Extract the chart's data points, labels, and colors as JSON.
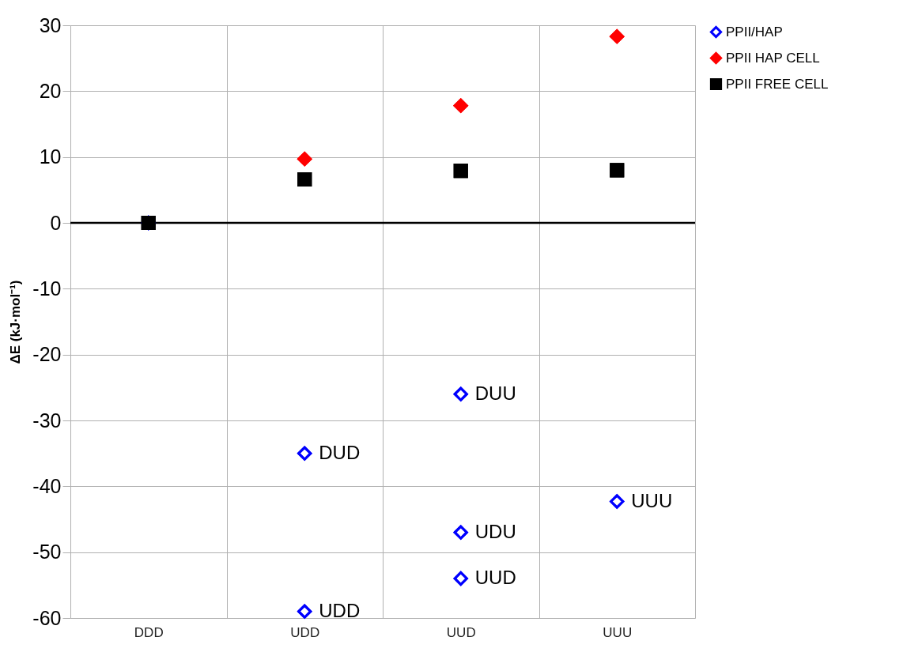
{
  "chart_data": {
    "type": "scatter",
    "ylabel": "ΔE (kJ·mol⁻¹)",
    "categories": [
      "DDD",
      "UDD",
      "UUD",
      "UUU"
    ],
    "series": [
      {
        "name": "PPII/HAP",
        "color": "#0000ff",
        "marker": "diamond",
        "x": [
          "DDD",
          "UDD",
          "UDD",
          "UUD",
          "UUD",
          "UUD",
          "UUU"
        ],
        "values": [
          0,
          -35,
          -59,
          -26,
          -47,
          -54,
          -42.3
        ]
      },
      {
        "name": "PPII HAP CELL",
        "color": "#ff0000",
        "marker": "diamond",
        "values": [
          null,
          9.7,
          17.8,
          28.3
        ]
      },
      {
        "name": "PPII FREE CELL",
        "color": "#000000",
        "marker": "square",
        "values": [
          0,
          6.6,
          7.9,
          8.0
        ]
      }
    ],
    "ylim": [
      -60,
      30
    ],
    "yticks": [
      -60,
      -50,
      -40,
      -30,
      -20,
      -10,
      0,
      10,
      20,
      30
    ],
    "grid": true,
    "legend": "right",
    "ref_lines": [
      {
        "axis": "y",
        "value": 0,
        "color": "#000000"
      }
    ],
    "annotations": [
      {
        "text": "DUD",
        "x": "UDD",
        "y": -35
      },
      {
        "text": "UDD",
        "x": "UDD",
        "y": -59
      },
      {
        "text": "DUU",
        "x": "UUD",
        "y": -26
      },
      {
        "text": "UDU",
        "x": "UUD",
        "y": -47
      },
      {
        "text": "UUD",
        "x": "UUD",
        "y": -54
      },
      {
        "text": "UUU",
        "x": "UUU",
        "y": -42.3
      }
    ]
  }
}
